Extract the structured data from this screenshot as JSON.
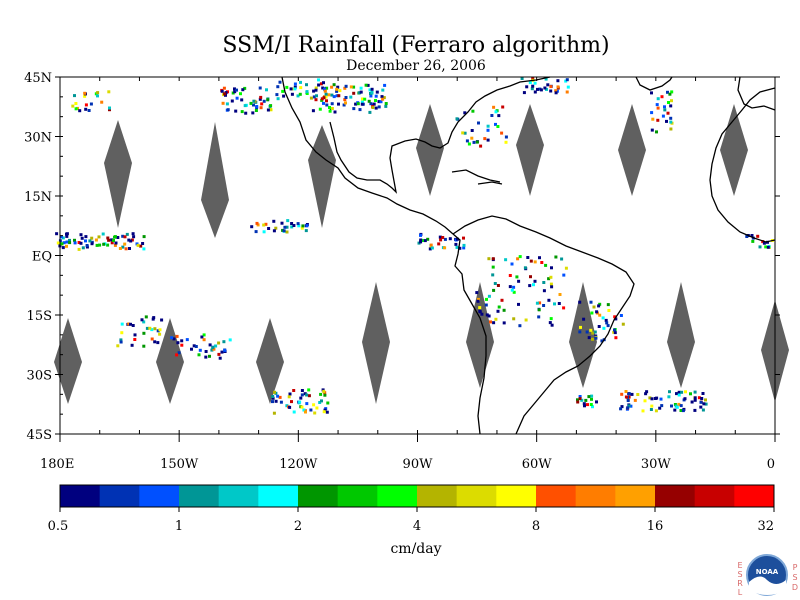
{
  "map": {
    "title": "SSM/I Rainfall (Ferraro algorithm)",
    "date": "December 26, 2006",
    "lat_labels": [
      "45N",
      "30N",
      "15N",
      "EQ",
      "15S",
      "30S",
      "45S"
    ],
    "lat_values": [
      45,
      30,
      15,
      0,
      -15,
      -30,
      -45
    ],
    "lon_labels": [
      "180E",
      "150W",
      "120W",
      "90W",
      "60W",
      "30W",
      "0"
    ],
    "lon_values": [
      -180,
      -150,
      -120,
      -90,
      -60,
      -30,
      0
    ],
    "lon_range": [
      -180,
      0
    ],
    "lat_range": [
      -45,
      45
    ],
    "swath_gap_color": "#606060",
    "coastline_color": "#000000"
  },
  "colorbar": {
    "unit_label": "cm/day",
    "tick_labels": [
      "0.5",
      "1",
      "2",
      "4",
      "8",
      "16",
      "32"
    ],
    "colors": [
      "#00007f",
      "#0032b4",
      "#0050ff",
      "#009696",
      "#00c8c8",
      "#00ffff",
      "#009600",
      "#00c800",
      "#00ff00",
      "#b4b400",
      "#dcdc00",
      "#ffff00",
      "#ff5000",
      "#ff7d00",
      "#ffa000",
      "#960000",
      "#c80000",
      "#ff0000"
    ]
  },
  "logo": {
    "left_letters": [
      "E",
      "S",
      "R",
      "L"
    ],
    "right_letters": [
      "P",
      "S",
      "D"
    ],
    "inner_text": "NOAA"
  }
}
